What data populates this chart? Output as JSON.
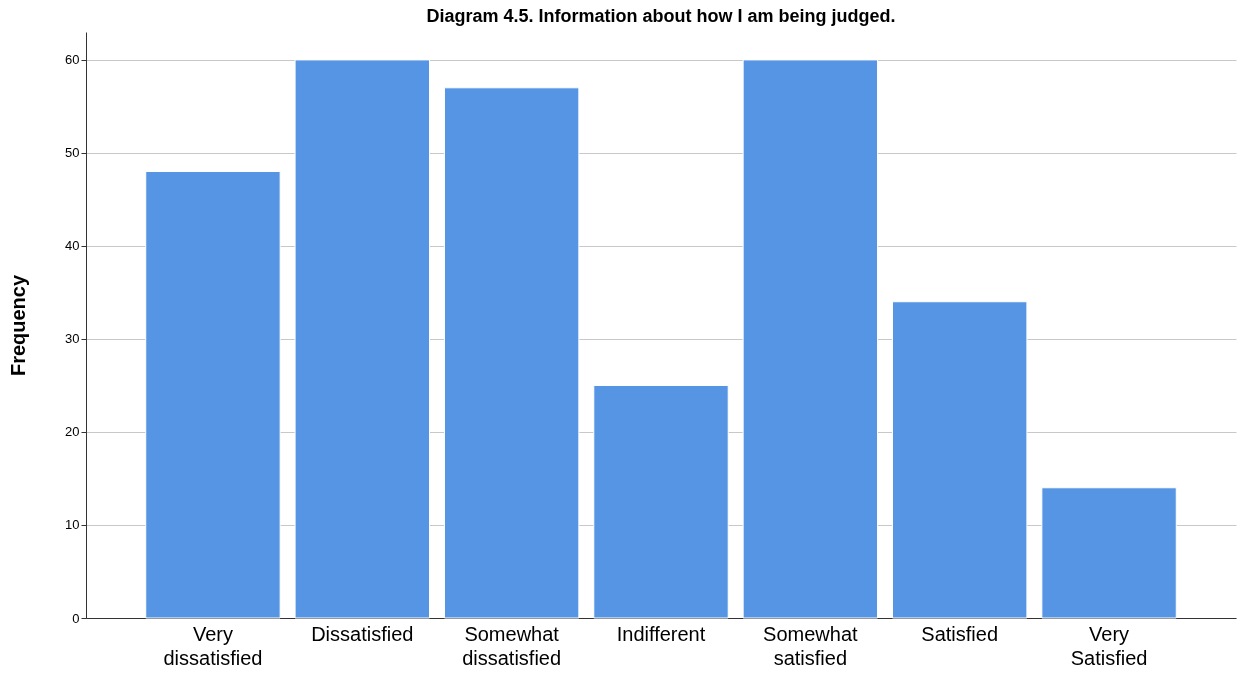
{
  "chart_data": {
    "type": "bar",
    "title": "Diagram 4.5. Information about how I am being judged.",
    "ylabel": "Frequency",
    "categories": [
      "Very dissatisfied",
      "Dissatisfied",
      "Somewhat dissatisfied",
      "Indifferent",
      "Somewhat satisfied",
      "Satisfied",
      "Very Satisfied"
    ],
    "values": [
      48,
      60,
      57,
      25,
      60,
      34,
      14
    ],
    "color": "#5595e3",
    "ylim": [
      0,
      63
    ],
    "yticks": [
      0,
      10,
      20,
      30,
      40,
      50,
      60
    ],
    "grid": "y"
  }
}
